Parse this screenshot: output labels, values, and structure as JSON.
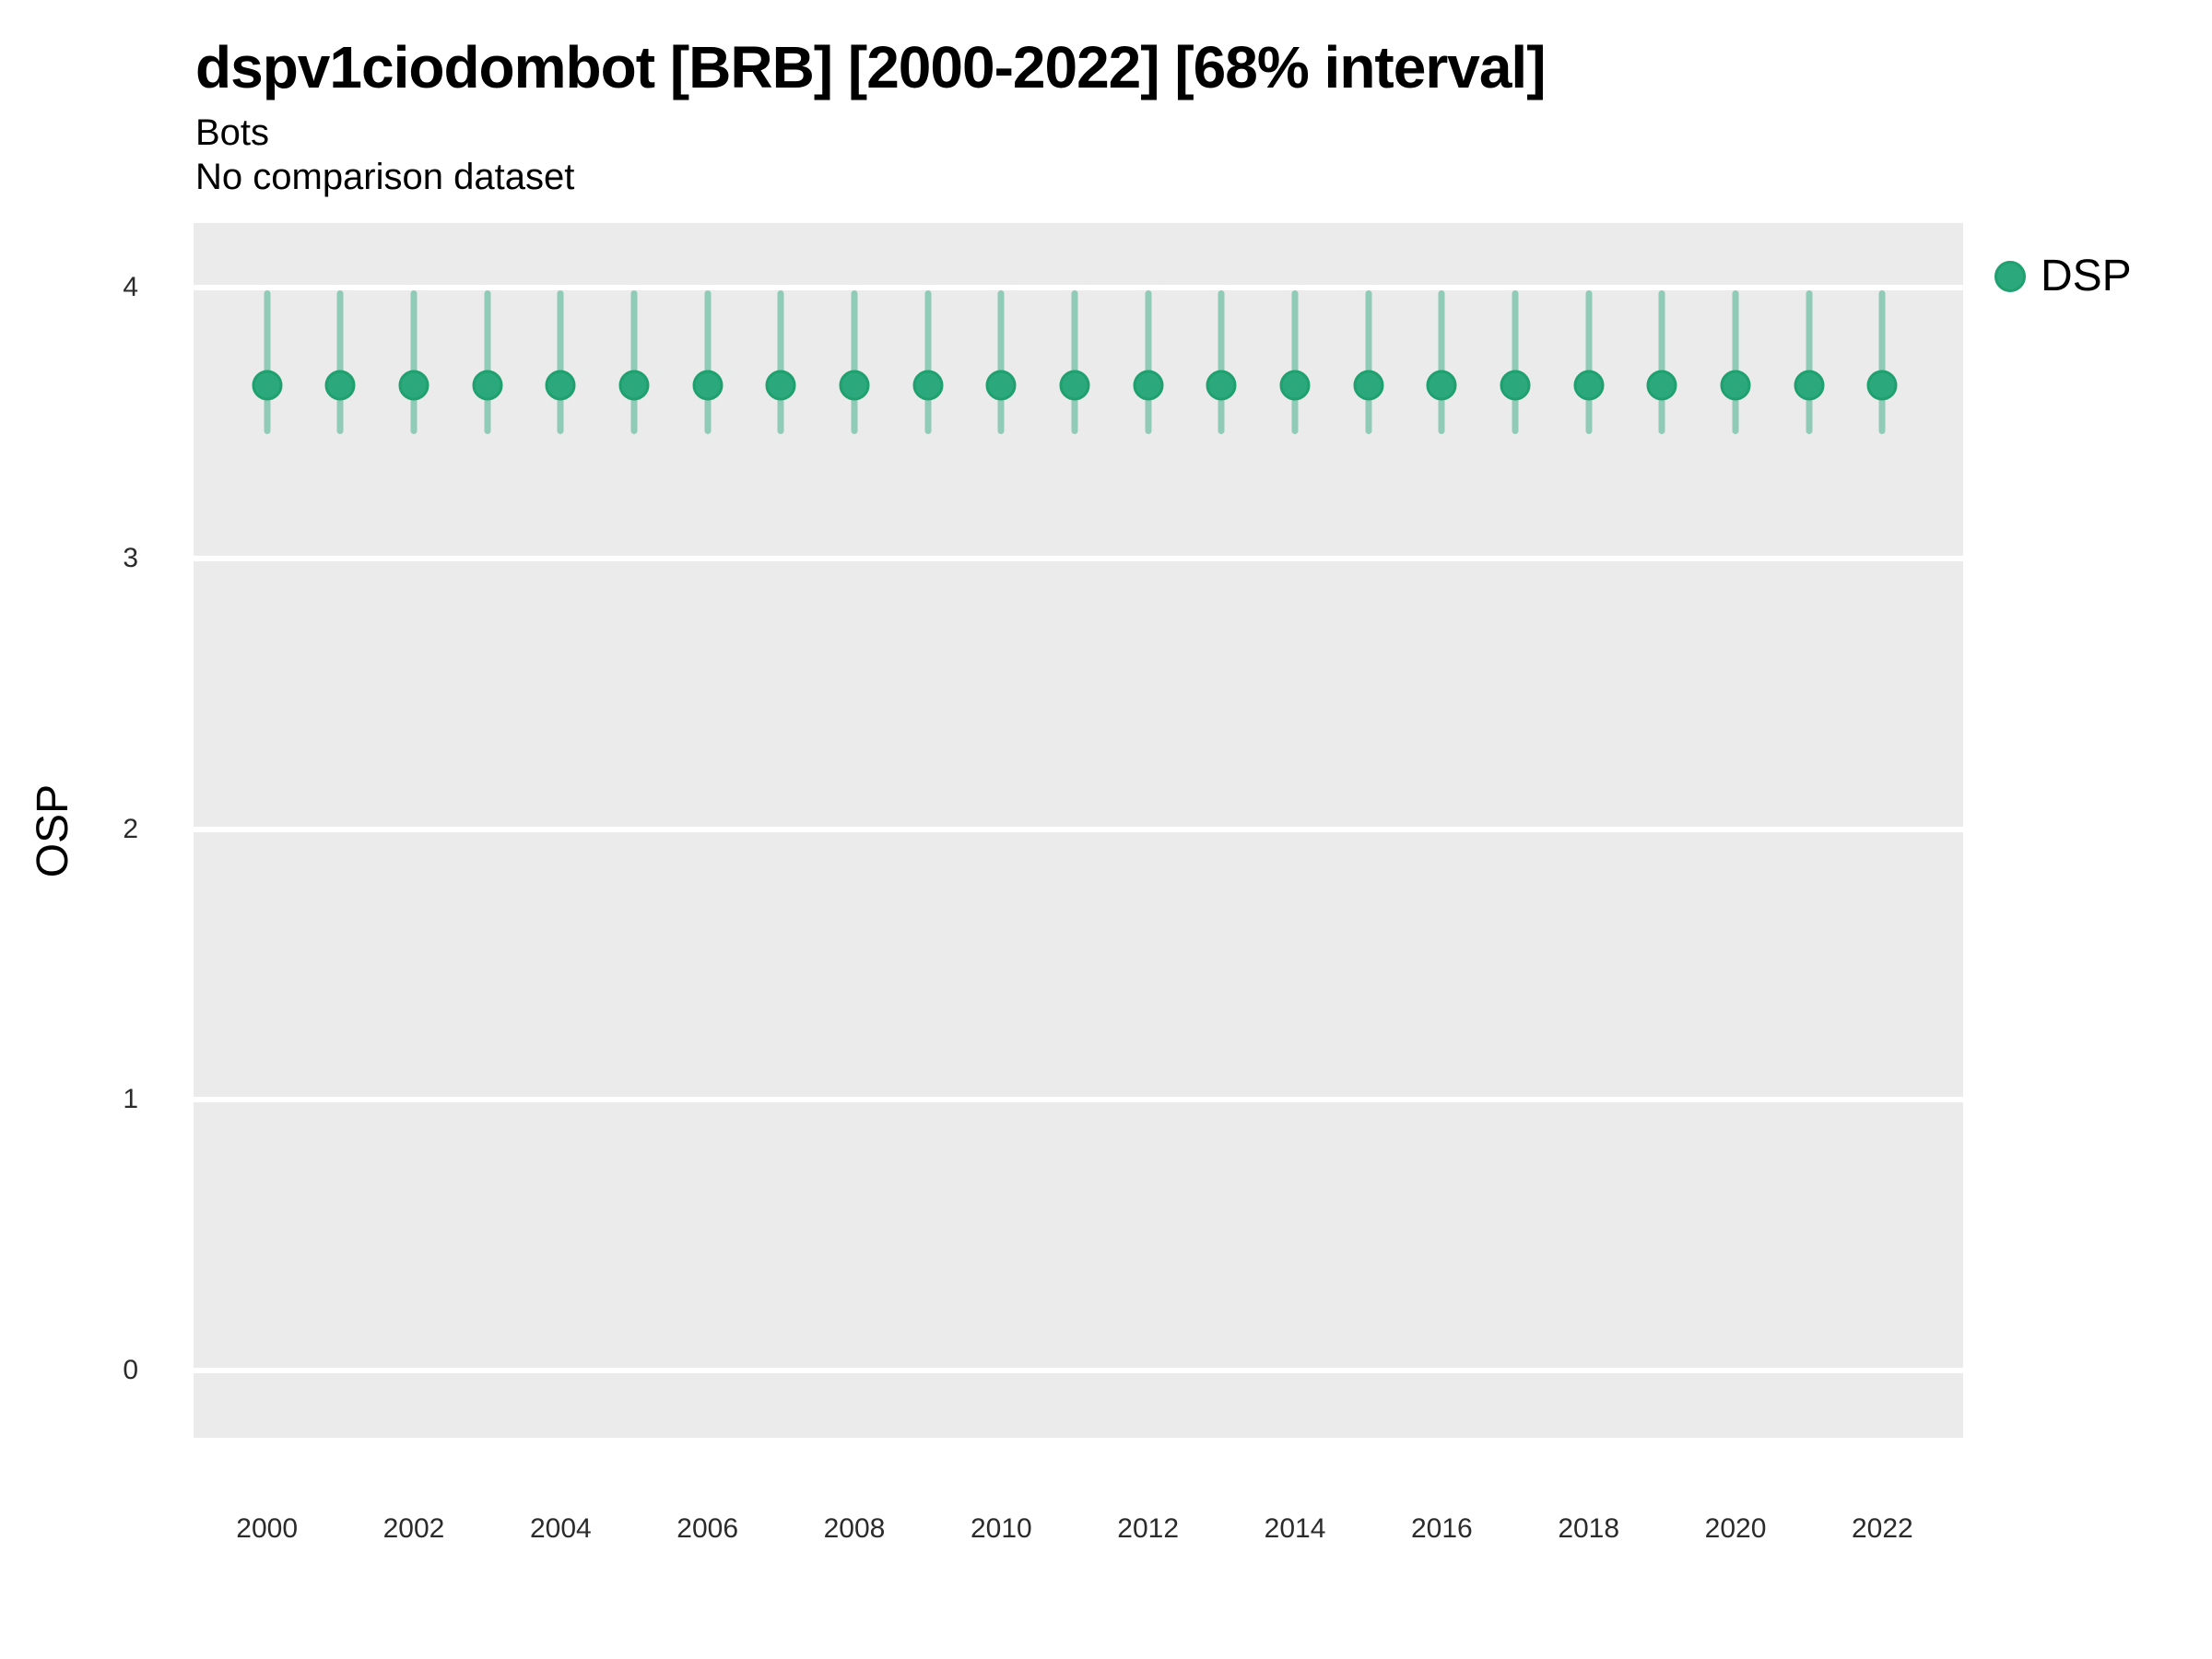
{
  "chart_data": {
    "type": "scatter",
    "variant": "point-interval",
    "title": "dspv1ciodombot [BRB] [2000-2022] [68% interval]",
    "subtitle": "Bots",
    "comparison_note": "No comparison dataset",
    "ylabel": "OSP",
    "xlabel": "",
    "legend": {
      "label": "DSP",
      "position": "right"
    },
    "grid": "horizontal-major-only",
    "x": [
      2000,
      2001,
      2002,
      2003,
      2004,
      2005,
      2006,
      2007,
      2008,
      2009,
      2010,
      2011,
      2012,
      2013,
      2014,
      2015,
      2016,
      2017,
      2018,
      2019,
      2020,
      2021,
      2022
    ],
    "series": [
      {
        "name": "DSP",
        "values": [
          3.64,
          3.64,
          3.64,
          3.64,
          3.64,
          3.64,
          3.64,
          3.64,
          3.64,
          3.64,
          3.64,
          3.64,
          3.64,
          3.64,
          3.64,
          3.64,
          3.64,
          3.64,
          3.64,
          3.64,
          3.64,
          3.64,
          3.64
        ],
        "lower_68": [
          3.46,
          3.46,
          3.46,
          3.46,
          3.46,
          3.46,
          3.46,
          3.46,
          3.46,
          3.46,
          3.46,
          3.46,
          3.46,
          3.46,
          3.46,
          3.46,
          3.46,
          3.46,
          3.46,
          3.46,
          3.46,
          3.46,
          3.46
        ],
        "upper_68": [
          3.99,
          3.99,
          3.99,
          3.99,
          3.99,
          3.99,
          3.99,
          3.99,
          3.99,
          3.99,
          3.99,
          3.99,
          3.99,
          3.99,
          3.99,
          3.99,
          3.99,
          3.99,
          3.99,
          3.99,
          3.99,
          3.99,
          3.99
        ]
      }
    ],
    "x_ticks": [
      2000,
      2002,
      2004,
      2006,
      2008,
      2010,
      2012,
      2014,
      2016,
      2018,
      2020,
      2022
    ],
    "y_ticks": [
      0,
      1,
      2,
      3,
      4
    ],
    "xlim": [
      1999.0,
      2023.1
    ],
    "ylim": [
      -0.25,
      4.24
    ],
    "colors": {
      "point": "#2ca87d",
      "point_ring": "#1fa06f",
      "interval": "rgba(44,168,125,0.48)",
      "panel_bg": "#ebebeb",
      "gridline": "#ffffff"
    }
  }
}
